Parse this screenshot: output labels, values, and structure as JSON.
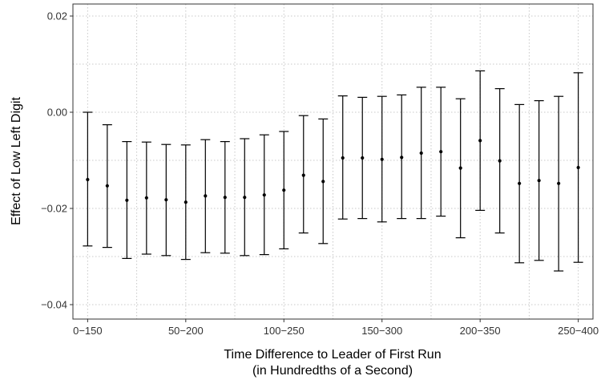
{
  "chart_data": {
    "type": "scatter",
    "subtype": "point-with-error-bars",
    "xlabel": [
      "Time Difference to Leader of First Run",
      "(in Hundredths of a Second)"
    ],
    "ylabel": "Effect of Low Left Digit",
    "ylim": [
      -0.043,
      0.0225
    ],
    "y_ticks": [
      -0.04,
      -0.02,
      0.0,
      0.02
    ],
    "y_tick_labels": [
      "−0.04",
      "−0.02",
      "0.00",
      "0.02"
    ],
    "x_tick_labels": [
      "0−150",
      "50−200",
      "100−250",
      "150−300",
      "200−350",
      "250−400"
    ],
    "x_tick_positions": [
      1,
      6,
      11,
      16,
      21,
      26
    ],
    "grid": true,
    "points": [
      {
        "x": 1,
        "y": -0.014,
        "lower": -0.0278,
        "upper": 0.0
      },
      {
        "x": 2,
        "y": -0.0153,
        "lower": -0.0281,
        "upper": -0.0026
      },
      {
        "x": 3,
        "y": -0.0183,
        "lower": -0.0304,
        "upper": -0.0061
      },
      {
        "x": 4,
        "y": -0.0178,
        "lower": -0.0295,
        "upper": -0.0062
      },
      {
        "x": 5,
        "y": -0.0182,
        "lower": -0.0298,
        "upper": -0.0067
      },
      {
        "x": 6,
        "y": -0.0187,
        "lower": -0.0306,
        "upper": -0.0068
      },
      {
        "x": 7,
        "y": -0.0174,
        "lower": -0.0292,
        "upper": -0.0057
      },
      {
        "x": 8,
        "y": -0.0177,
        "lower": -0.0293,
        "upper": -0.0061
      },
      {
        "x": 9,
        "y": -0.0177,
        "lower": -0.0298,
        "upper": -0.0055
      },
      {
        "x": 10,
        "y": -0.0172,
        "lower": -0.0296,
        "upper": -0.0047
      },
      {
        "x": 11,
        "y": -0.0162,
        "lower": -0.0284,
        "upper": -0.004
      },
      {
        "x": 12,
        "y": -0.0131,
        "lower": -0.0251,
        "upper": -0.0007
      },
      {
        "x": 13,
        "y": -0.0144,
        "lower": -0.0273,
        "upper": -0.0014
      },
      {
        "x": 14,
        "y": -0.0095,
        "lower": -0.0222,
        "upper": 0.0034
      },
      {
        "x": 15,
        "y": -0.0095,
        "lower": -0.0221,
        "upper": 0.0031
      },
      {
        "x": 16,
        "y": -0.0098,
        "lower": -0.0228,
        "upper": 0.0033
      },
      {
        "x": 17,
        "y": -0.0094,
        "lower": -0.0221,
        "upper": 0.0036
      },
      {
        "x": 18,
        "y": -0.0085,
        "lower": -0.0221,
        "upper": 0.0052
      },
      {
        "x": 19,
        "y": -0.0082,
        "lower": -0.0216,
        "upper": 0.0052
      },
      {
        "x": 20,
        "y": -0.0116,
        "lower": -0.0261,
        "upper": 0.0028
      },
      {
        "x": 21,
        "y": -0.0059,
        "lower": -0.0204,
        "upper": 0.0086
      },
      {
        "x": 22,
        "y": -0.0101,
        "lower": -0.0251,
        "upper": 0.0049
      },
      {
        "x": 23,
        "y": -0.0148,
        "lower": -0.0313,
        "upper": 0.0016
      },
      {
        "x": 24,
        "y": -0.0142,
        "lower": -0.0308,
        "upper": 0.0024
      },
      {
        "x": 25,
        "y": -0.0148,
        "lower": -0.033,
        "upper": 0.0033
      },
      {
        "x": 26,
        "y": -0.0115,
        "lower": -0.0312,
        "upper": 0.0082
      }
    ]
  }
}
